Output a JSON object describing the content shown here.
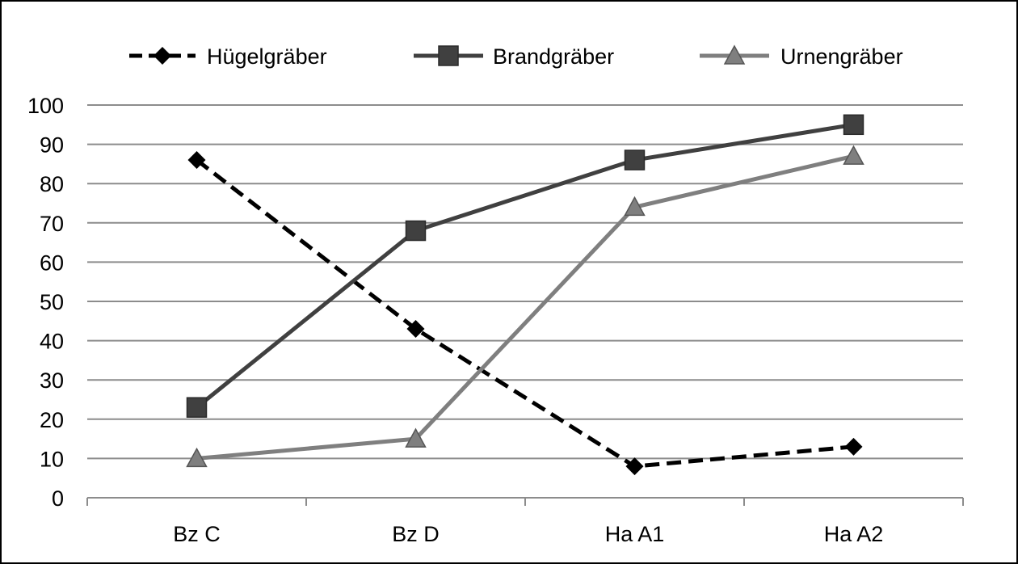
{
  "chart_data": {
    "type": "line",
    "title": "",
    "xlabel": "",
    "ylabel": "",
    "categories": [
      "Bz C",
      "Bz D",
      "Ha A1",
      "Ha A2"
    ],
    "ylim": [
      0,
      100
    ],
    "yticks": [
      "0",
      "10",
      "20",
      "30",
      "40",
      "50",
      "60",
      "70",
      "80",
      "90",
      "100"
    ],
    "grid": true,
    "legend_position": "top",
    "series": [
      {
        "name": "Hügelgräber",
        "values": [
          86,
          43,
          8,
          13
        ],
        "color": "#000000",
        "dash": "dashed",
        "marker": "diamond"
      },
      {
        "name": "Brandgräber",
        "values": [
          23,
          68,
          86,
          95
        ],
        "color": "#404040",
        "dash": "solid",
        "marker": "square"
      },
      {
        "name": "Urnengräber",
        "values": [
          10,
          15,
          74,
          87
        ],
        "color": "#7f7f7f",
        "dash": "solid",
        "marker": "triangle"
      }
    ]
  }
}
